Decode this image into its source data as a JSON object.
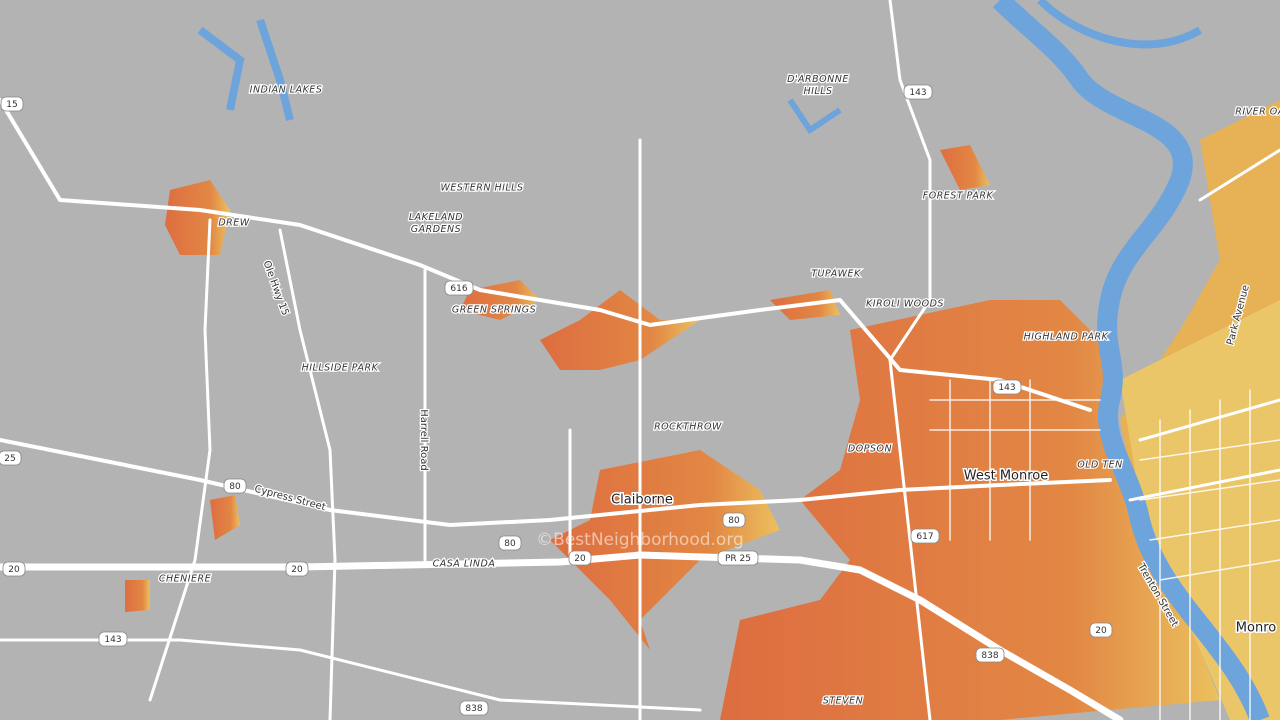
{
  "map": {
    "places": [
      "INDIAN LAKES",
      "D'ARBONNE HILLS",
      "WESTERN HILLS",
      "LAKELAND GARDENS",
      "FOREST PARK",
      "RIVER OA",
      "DREW",
      "TUPAWEK",
      "GREEN SPRINGS",
      "KIROLI WOODS",
      "HIGHLAND PARK",
      "HILLSIDE PARK",
      "ROCKTHROW",
      "DOPSON",
      "OLD TEN",
      "CASA LINDA",
      "CHENIERE",
      "STEVEN"
    ],
    "streets": [
      "Ole Hwy 15",
      "Park Avenue",
      "Harrell Road",
      "Cypress Street",
      "Trenton Street"
    ],
    "cities": [
      "West Monroe",
      "Claiborne",
      "Monro"
    ],
    "shields": [
      "15",
      "143",
      "616",
      "143",
      "25",
      "80",
      "80",
      "617",
      "80",
      "20",
      "20",
      "20",
      "PR 25",
      "143",
      "20",
      "838",
      "838"
    ],
    "watermark": "©BestNeighborhood.org"
  }
}
